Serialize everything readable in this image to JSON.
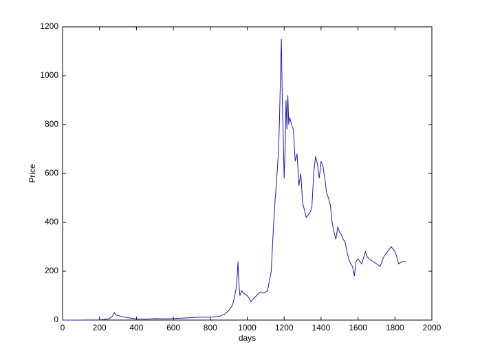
{
  "chart_data": {
    "type": "line",
    "xlabel": "days",
    "ylabel": "Price",
    "xlim": [
      0,
      2000
    ],
    "xticks": [
      0,
      200,
      400,
      600,
      800,
      1000,
      1200,
      1400,
      1600,
      1800,
      2000
    ],
    "ylim": [
      0,
      1200
    ],
    "yticks": [
      0,
      200,
      400,
      600,
      800,
      1000,
      1200
    ],
    "series": [
      {
        "color": "#1a1aa6",
        "x": [
          0,
          100,
          200,
          250,
          270,
          280,
          290,
          320,
          350,
          400,
          450,
          500,
          550,
          600,
          650,
          700,
          750,
          800,
          850,
          880,
          900,
          920,
          930,
          940,
          945,
          950,
          955,
          960,
          970,
          980,
          1000,
          1010,
          1020,
          1030,
          1050,
          1070,
          1090,
          1110,
          1130,
          1140,
          1150,
          1160,
          1170,
          1175,
          1180,
          1185,
          1190,
          1195,
          1200,
          1205,
          1210,
          1215,
          1220,
          1225,
          1230,
          1240,
          1250,
          1260,
          1270,
          1280,
          1290,
          1300,
          1310,
          1320,
          1330,
          1340,
          1350,
          1360,
          1370,
          1380,
          1390,
          1400,
          1410,
          1420,
          1430,
          1440,
          1450,
          1460,
          1470,
          1480,
          1490,
          1500,
          1510,
          1520,
          1530,
          1540,
          1550,
          1560,
          1570,
          1580,
          1590,
          1600,
          1620,
          1640,
          1650,
          1660,
          1680,
          1700,
          1720,
          1740,
          1760,
          1780,
          1790,
          1800,
          1810,
          1820,
          1840,
          1860
        ],
        "values": [
          0,
          0.1,
          0.5,
          5,
          15,
          30,
          20,
          15,
          10,
          5,
          4,
          6,
          5,
          6,
          8,
          10,
          12,
          12,
          15,
          25,
          40,
          60,
          90,
          130,
          170,
          240,
          150,
          100,
          120,
          110,
          100,
          90,
          75,
          85,
          100,
          115,
          110,
          120,
          200,
          350,
          480,
          580,
          700,
          830,
          1000,
          1150,
          900,
          750,
          580,
          700,
          900,
          780,
          920,
          800,
          830,
          800,
          780,
          650,
          680,
          550,
          600,
          480,
          450,
          420,
          430,
          440,
          460,
          600,
          670,
          640,
          580,
          650,
          630,
          580,
          520,
          500,
          470,
          400,
          360,
          330,
          380,
          360,
          350,
          330,
          320,
          280,
          250,
          230,
          220,
          180,
          240,
          250,
          230,
          280,
          260,
          250,
          240,
          230,
          220,
          260,
          280,
          300,
          290,
          280,
          260,
          230,
          240,
          240
        ]
      }
    ]
  }
}
